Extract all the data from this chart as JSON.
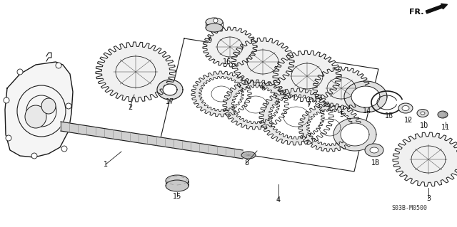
{
  "background_color": "#ffffff",
  "line_color": "#1a1a1a",
  "diagram_code": "S03B-M0500",
  "fr_label": "FR.",
  "label_fontsize": 7,
  "code_fontsize": 6,
  "fr_fontsize": 8,
  "figsize": [
    6.4,
    3.19
  ],
  "dpi": 100
}
